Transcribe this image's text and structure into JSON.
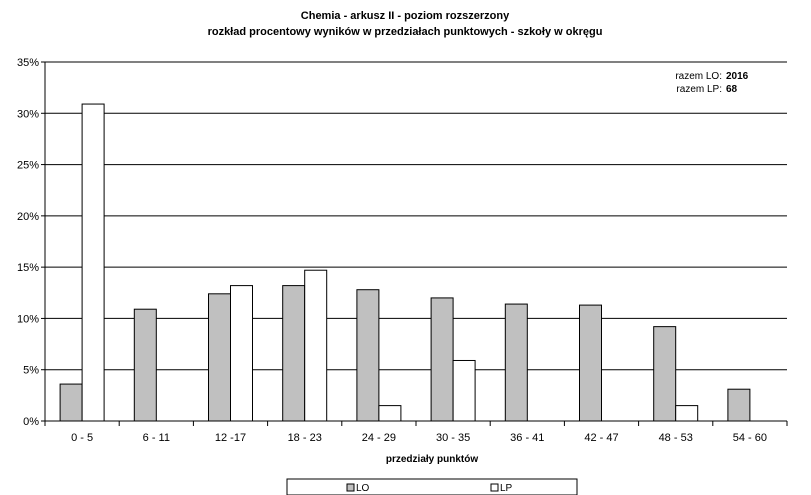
{
  "chart_data": {
    "type": "bar",
    "title": "Chemia - arkusz II - poziom rozszerzony",
    "subtitle": "rozkład procentowy wyników w przedziałach punktowych - szkoły w okręgu",
    "xlabel": "przedziały punktów",
    "ylabel": "",
    "ylim": [
      0,
      35
    ],
    "yticks": [
      "0%",
      "5%",
      "10%",
      "15%",
      "20%",
      "25%",
      "30%",
      "35%"
    ],
    "grid": true,
    "legend_position": "bottom",
    "categories": [
      "0 - 5",
      "6 - 11",
      "12 -17",
      "18 - 23",
      "24 - 29",
      "30 - 35",
      "36 - 41",
      "42 - 47",
      "48 - 53",
      "54 - 60"
    ],
    "series": [
      {
        "name": "LO",
        "color": "#c0c0c0",
        "values": [
          3.6,
          10.9,
          12.4,
          13.2,
          12.8,
          12.0,
          11.4,
          11.3,
          9.2,
          3.1
        ]
      },
      {
        "name": "LP",
        "color": "#ffffff",
        "values": [
          30.9,
          0,
          13.2,
          14.7,
          1.5,
          5.9,
          0,
          0,
          1.5,
          0
        ]
      }
    ],
    "annotations": [
      {
        "label": "razem LO:",
        "value": "2016"
      },
      {
        "label": "razem LP:",
        "value": "68"
      }
    ]
  }
}
